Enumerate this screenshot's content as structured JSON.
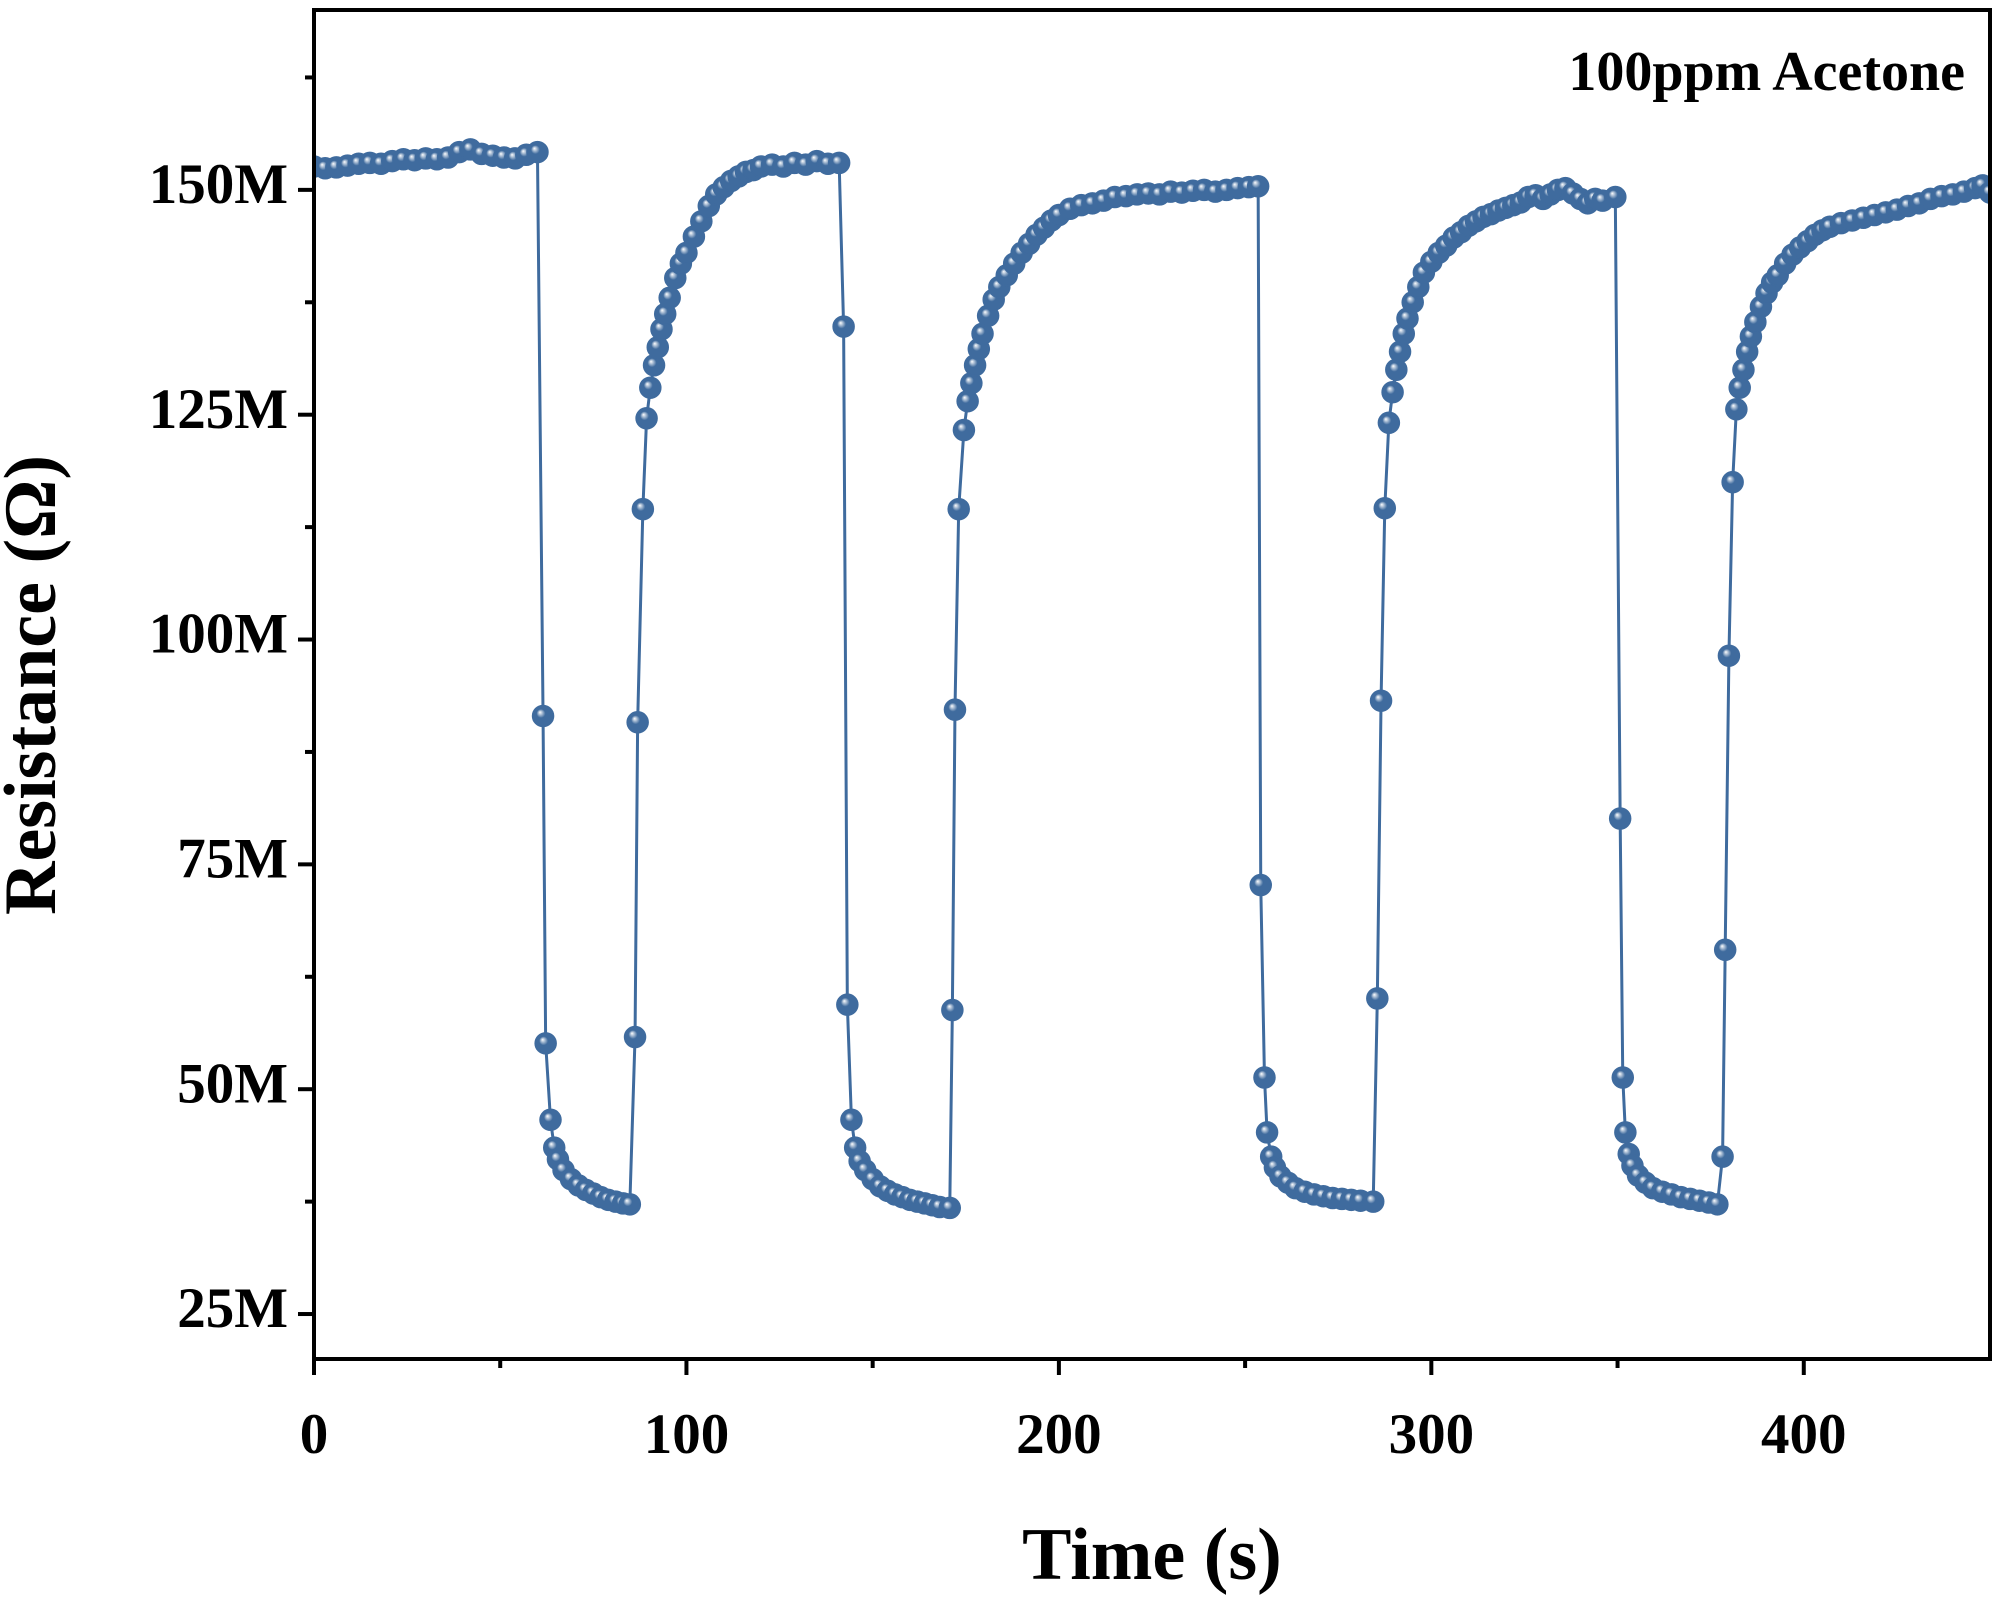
{
  "chart_data": {
    "type": "line",
    "annotation": "100ppm Acetone",
    "x_label": "Time (s)",
    "y_label": "Resistance (Ω)",
    "xlim": [
      0,
      450
    ],
    "ylim": [
      20,
      170
    ],
    "xticks": [
      0,
      100,
      200,
      300,
      400
    ],
    "xminorticks": [
      50,
      150,
      250,
      350
    ],
    "yticks": [
      {
        "value": 25,
        "label": "25M"
      },
      {
        "value": 50,
        "label": "50M"
      },
      {
        "value": 75,
        "label": "75M"
      },
      {
        "value": 100,
        "label": "100M"
      },
      {
        "value": 125,
        "label": "125M"
      },
      {
        "value": 150,
        "label": "150M"
      }
    ],
    "yminorticks": [
      37.5,
      62.5,
      87.5,
      112.5,
      137.5,
      162.5
    ],
    "markers": true,
    "x": [
      0,
      3,
      6,
      9,
      12,
      15,
      18,
      21,
      24,
      27,
      30,
      33,
      36,
      39,
      42,
      45,
      48,
      51,
      54,
      57,
      60,
      61.5,
      62.2,
      63.5,
      64.5,
      65.5,
      67,
      69,
      71,
      73,
      75,
      77,
      79,
      81,
      83,
      84.8,
      86.2,
      86.9,
      88.3,
      89.3,
      90.3,
      91.3,
      92.3,
      93.3,
      94.3,
      95.5,
      97,
      98.5,
      100,
      102,
      104,
      106,
      108,
      110,
      112,
      114,
      116,
      118,
      120,
      123,
      126,
      129,
      132,
      135,
      138,
      141,
      142.2,
      143.2,
      144.3,
      145.3,
      146.5,
      148,
      150,
      152,
      154,
      156,
      158,
      160,
      162,
      164,
      166,
      168,
      170.7,
      171.4,
      172.1,
      173.1,
      174.5,
      175.5,
      176.5,
      177.5,
      178.5,
      179.5,
      181,
      182.5,
      184,
      186,
      188,
      190,
      192,
      194,
      196,
      198,
      200,
      203,
      206,
      209,
      212,
      215,
      218,
      221,
      224,
      227,
      230,
      233,
      236,
      239,
      242,
      245,
      248,
      251,
      253.5,
      254.2,
      255.2,
      255.9,
      257,
      258,
      259.5,
      261.5,
      263.5,
      266,
      268.5,
      271,
      273.5,
      276,
      278.5,
      281,
      284.4,
      285.5,
      286.5,
      287.5,
      288.6,
      289.6,
      290.6,
      291.6,
      292.6,
      293.6,
      295,
      296.5,
      298,
      300,
      302,
      304,
      306,
      308,
      310,
      312,
      314,
      316,
      318,
      320,
      322,
      324,
      326,
      328,
      330,
      332,
      334,
      336,
      338,
      340,
      342,
      344,
      346,
      349.4,
      350.7,
      351.4,
      352.1,
      353,
      354,
      355.5,
      357.5,
      359.5,
      362,
      364.5,
      367,
      369.5,
      372,
      374.5,
      376.8,
      378.2,
      378.9,
      379.9,
      380.9,
      381.9,
      382.8,
      383.8,
      384.8,
      385.8,
      387,
      388.5,
      390,
      391.5,
      393,
      395,
      397,
      399,
      401,
      403,
      405,
      407,
      410,
      413,
      416,
      419,
      422,
      425,
      428,
      431,
      434,
      437,
      440,
      443,
      446,
      448,
      450
    ],
    "series": [
      {
        "color": "#3f6b9e",
        "values": [
          152.6,
          152.4,
          152.5,
          152.7,
          152.9,
          153.0,
          152.9,
          153.2,
          153.4,
          153.3,
          153.5,
          153.4,
          153.6,
          154.2,
          154.5,
          154.0,
          153.8,
          153.6,
          153.5,
          153.9,
          154.2,
          91.5,
          55.1,
          46.6,
          43.5,
          42.2,
          41.0,
          40.0,
          39.3,
          38.8,
          38.4,
          38.0,
          37.7,
          37.5,
          37.3,
          37.2,
          55.8,
          90.8,
          114.5,
          124.6,
          128,
          130.5,
          132.5,
          134.5,
          136.2,
          138,
          140.2,
          141.8,
          143,
          144.8,
          146.5,
          148.2,
          149.5,
          150.3,
          151,
          151.5,
          152,
          152.2,
          152.6,
          152.8,
          152.6,
          153,
          152.8,
          153.2,
          152.9,
          153,
          134.8,
          59.4,
          46.6,
          43.5,
          42,
          41,
          40,
          39.2,
          38.7,
          38.3,
          38,
          37.7,
          37.5,
          37.3,
          37.1,
          36.9,
          36.8,
          58.8,
          92.2,
          114.5,
          123.3,
          126.5,
          128.5,
          130.5,
          132.3,
          134,
          136,
          137.8,
          139.2,
          140.5,
          141.8,
          143,
          144,
          145,
          145.8,
          146.6,
          147.2,
          147.9,
          148.3,
          148.5,
          148.8,
          149.2,
          149.3,
          149.5,
          149.6,
          149.5,
          149.8,
          149.7,
          149.9,
          150,
          149.8,
          150,
          150.2,
          150.3,
          150.4,
          72.7,
          51.3,
          45.2,
          42.5,
          41.3,
          40.3,
          39.6,
          39,
          38.6,
          38.3,
          38.1,
          37.9,
          37.8,
          37.7,
          37.6,
          37.5,
          60.1,
          93.2,
          114.6,
          124.1,
          127.5,
          130,
          132,
          134,
          135.7,
          137.5,
          139.2,
          140.8,
          142,
          143,
          143.8,
          144.7,
          145.3,
          146,
          146.5,
          147,
          147.3,
          147.7,
          148,
          148.3,
          148.6,
          149.2,
          149.4,
          149,
          149.5,
          150,
          150.2,
          149.6,
          149,
          148.5,
          149,
          148.8,
          149.2,
          80.1,
          51.3,
          45.2,
          42.8,
          41.5,
          40.4,
          39.6,
          39,
          38.6,
          38.3,
          38,
          37.8,
          37.6,
          37.4,
          37.2,
          42.5,
          65.5,
          98.2,
          117.5,
          125.6,
          128,
          130,
          132,
          133.7,
          135.3,
          137,
          138.5,
          139.7,
          140.5,
          141.8,
          142.8,
          143.6,
          144.3,
          145,
          145.5,
          145.9,
          146.3,
          146.6,
          146.9,
          147.2,
          147.5,
          147.8,
          148.2,
          148.5,
          149,
          149.3,
          149.5,
          149.8,
          150.2,
          150.5,
          149.7
        ]
      }
    ]
  }
}
